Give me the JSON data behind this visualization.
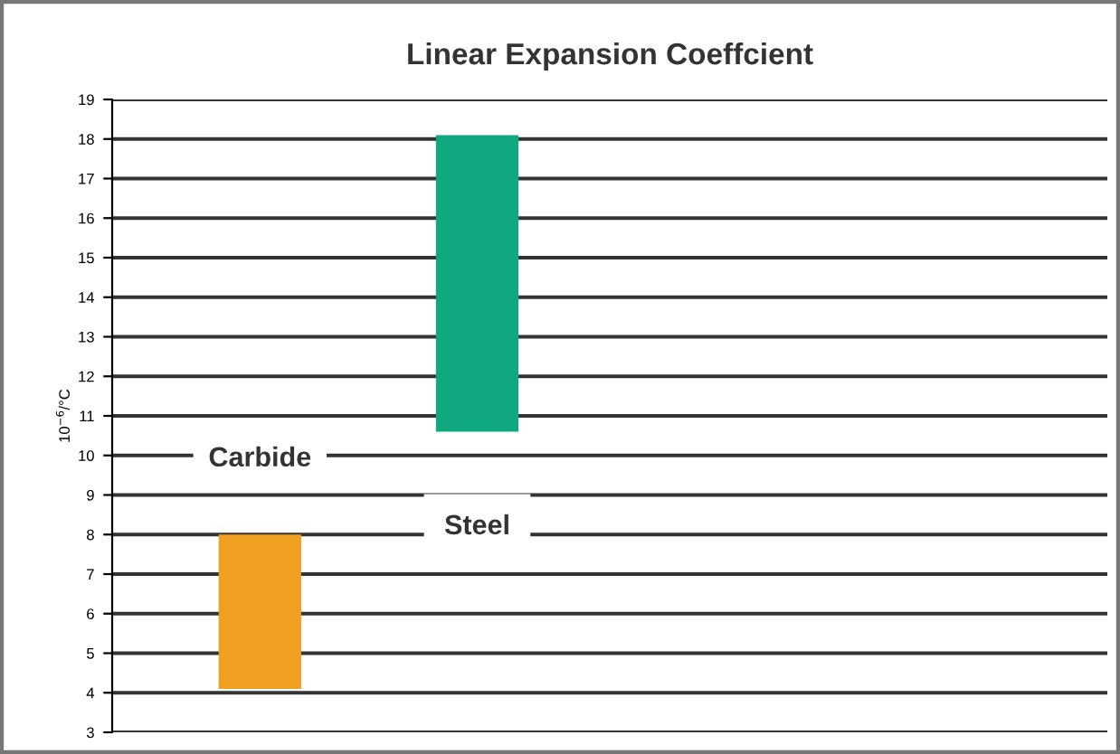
{
  "chart_data": {
    "type": "bar",
    "title": "Linear Expansion Coeffcient",
    "ylabel": "10$^{−6}$/°C",
    "categories": [
      "Carbide",
      "Steel"
    ],
    "values": [
      3.9,
      7.5
    ],
    "base": [
      4.1,
      10.6
    ],
    "colors": [
      "#f0a020",
      "#10a880"
    ],
    "ylim": [
      3,
      19
    ],
    "yticks": [
      3,
      4,
      5,
      6,
      7,
      8,
      9,
      10,
      11,
      12,
      13,
      14,
      15,
      16,
      17,
      18,
      19
    ],
    "grid": "y"
  }
}
